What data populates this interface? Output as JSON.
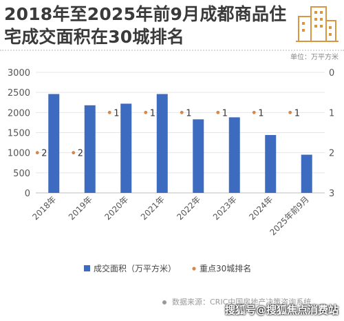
{
  "title": "2018年至2025年前9月成都商品住宅成交面积在30城排名",
  "unit": "单位：万平方米",
  "source": "数据来源：CRIC中国房地产决策咨询系统",
  "watermark": "搜狐号@搜狐焦点消费站",
  "logo_icon": "building-icon",
  "colors": {
    "bar": "#3d6bbf",
    "dot": "#d4874a",
    "accent": "#d9963f"
  },
  "chart_data": {
    "type": "bar",
    "categories": [
      "2018年",
      "2019年",
      "2020年",
      "2021年",
      "2022年",
      "2023年",
      "2024年",
      "2025年前9月"
    ],
    "series": [
      {
        "name": "成交面积（万平方米）",
        "type": "bar",
        "axis": "left",
        "values": [
          2460,
          2180,
          2220,
          2460,
          1830,
          1880,
          1440,
          950
        ]
      },
      {
        "name": "重点30城排名",
        "type": "scatter",
        "axis": "right",
        "values": [
          2,
          2,
          1,
          1,
          1,
          1,
          1,
          1
        ]
      }
    ],
    "yleft": {
      "min": 0,
      "max": 3000,
      "ticks": [
        0,
        500,
        1000,
        1500,
        2000,
        2500,
        3000
      ]
    },
    "yright": {
      "min": 0,
      "max": 3,
      "reversed": true,
      "ticks": [
        0,
        1,
        2,
        3
      ]
    },
    "grid": true,
    "legend_position": "bottom"
  }
}
